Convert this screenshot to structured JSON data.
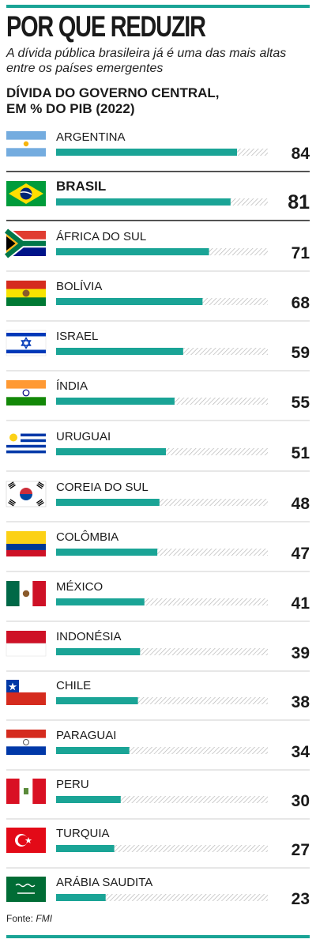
{
  "title": "POR QUE REDUZIR",
  "subtitle": "A dívida pública brasileira já é uma das mais altas entre os países emergentes",
  "chart_data": {
    "type": "bar",
    "orientation": "horizontal",
    "title_lines": [
      "DÍVIDA DO GOVERNO CENTRAL,",
      "EM % DO PIB (2022)"
    ],
    "categories": [
      "ARGENTINA",
      "BRASIL",
      "ÁFRICA DO SUL",
      "BOLÍVIA",
      "ISRAEL",
      "ÍNDIA",
      "URUGUAI",
      "COREIA DO SUL",
      "COLÔMBIA",
      "MÉXICO",
      "INDONÉSIA",
      "CHILE",
      "PARAGUAI",
      "PERU",
      "TURQUIA",
      "ARÁBIA SAUDITA"
    ],
    "values": [
      84,
      81,
      71,
      68,
      59,
      55,
      51,
      48,
      47,
      41,
      39,
      38,
      34,
      30,
      27,
      23
    ],
    "highlight": "BRASIL",
    "xlim": [
      0,
      100
    ],
    "bar_color": "#1aa496",
    "track_style": "hatched"
  },
  "flags": [
    "argentina-flag-icon",
    "brazil-flag-icon",
    "south-africa-flag-icon",
    "bolivia-flag-icon",
    "israel-flag-icon",
    "india-flag-icon",
    "uruguay-flag-icon",
    "south-korea-flag-icon",
    "colombia-flag-icon",
    "mexico-flag-icon",
    "indonesia-flag-icon",
    "chile-flag-icon",
    "paraguay-flag-icon",
    "peru-flag-icon",
    "turkey-flag-icon",
    "saudi-arabia-flag-icon"
  ],
  "source": {
    "label": "Fonte:",
    "name": "FMI"
  }
}
